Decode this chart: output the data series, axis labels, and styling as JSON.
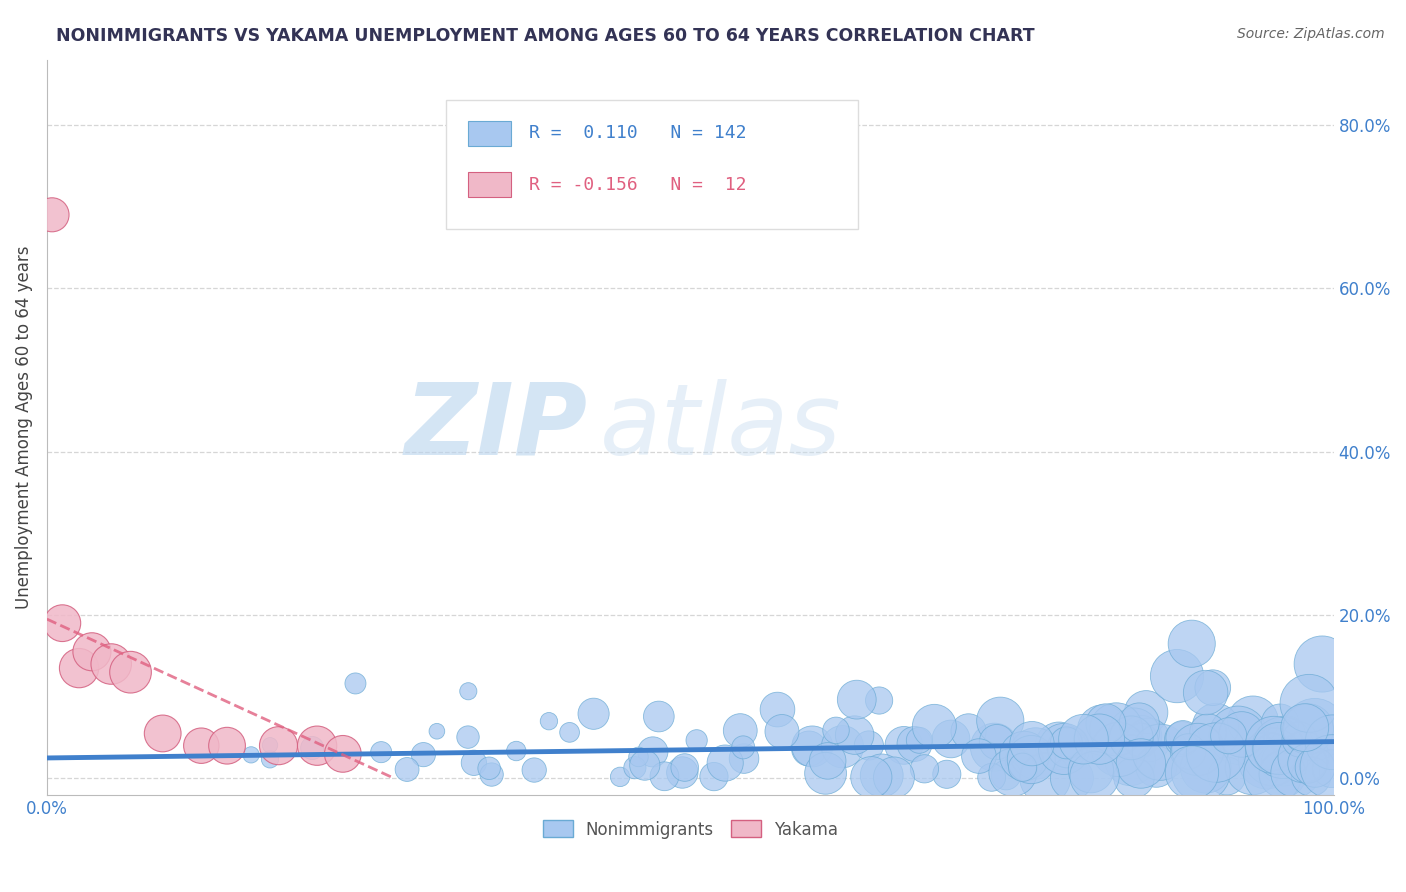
{
  "title": "NONIMMIGRANTS VS YAKAMA UNEMPLOYMENT AMONG AGES 60 TO 64 YEARS CORRELATION CHART",
  "source_text": "Source: ZipAtlas.com",
  "ylabel": "Unemployment Among Ages 60 to 64 years",
  "xlim": [
    0.0,
    1.0
  ],
  "ylim": [
    -0.02,
    0.88
  ],
  "yticks": [
    0.0,
    0.2,
    0.4,
    0.6,
    0.8
  ],
  "ytick_labels": [
    "0.0%",
    "20.0%",
    "40.0%",
    "60.0%",
    "80.0%"
  ],
  "xtick_labels": [
    "0.0%",
    "100.0%"
  ],
  "nonimmigrant_color": "#a8c8f0",
  "nonimmigrant_edge_color": "#6aaad4",
  "yakama_color": "#f0b8c8",
  "yakama_edge_color": "#d46080",
  "trend_blue_color": "#4080cc",
  "trend_pink_color": "#e06080",
  "watermark_zip": "ZIP",
  "watermark_atlas": "atlas",
  "legend_label_nonimmigrants": "Nonimmigrants",
  "legend_label_yakama": "Yakama",
  "R_nonimmigrant": 0.11,
  "N_nonimmigrant": 142,
  "R_yakama": -0.156,
  "N_yakama": 12,
  "blue_trend_x": [
    0.0,
    1.0
  ],
  "blue_trend_y": [
    0.025,
    0.045
  ],
  "pink_trend_x": [
    0.0,
    0.27
  ],
  "pink_trend_y": [
    0.195,
    0.0
  ],
  "background_color": "#ffffff",
  "grid_color": "#cccccc",
  "title_color": "#333355",
  "source_color": "#666666",
  "tick_color": "#4080cc"
}
